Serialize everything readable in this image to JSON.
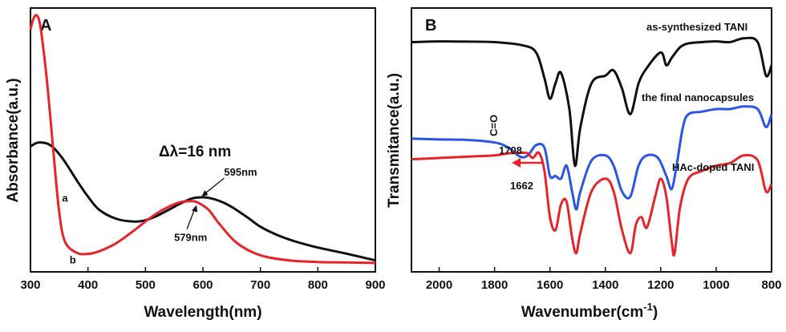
{
  "chart_data": [
    {
      "type": "line",
      "panel_label": "A",
      "xlabel": "Wavelength(nm)",
      "ylabel": "Absorbance(a.u.)",
      "xlim": [
        300,
        900
      ],
      "ylim": [
        0,
        1
      ],
      "xticks": [
        300,
        400,
        500,
        600,
        700,
        800,
        900
      ],
      "yticks_visible": false,
      "grid": false,
      "annotation_main": "Δλ=16 nm",
      "annotations": [
        {
          "id": "peak-a",
          "text": "595nm",
          "x": 595,
          "y": 0.277
        },
        {
          "id": "peak-b",
          "text": "579nm",
          "x": 575,
          "y": 0.21
        }
      ],
      "series": [
        {
          "name": "a",
          "label_x": 355,
          "label_y": 0.272,
          "color": "#111111",
          "x": [
            300,
            310,
            320,
            330,
            340,
            350,
            360,
            380,
            400,
            420,
            450,
            480,
            500,
            520,
            540,
            560,
            580,
            595,
            610,
            630,
            650,
            680,
            700,
            730,
            760,
            800,
            850,
            900
          ],
          "y": [
            0.475,
            0.488,
            0.49,
            0.485,
            0.47,
            0.445,
            0.415,
            0.345,
            0.28,
            0.228,
            0.193,
            0.183,
            0.188,
            0.205,
            0.228,
            0.252,
            0.272,
            0.277,
            0.275,
            0.262,
            0.24,
            0.195,
            0.163,
            0.13,
            0.106,
            0.082,
            0.058,
            0.032
          ]
        },
        {
          "name": "b",
          "label_x": 368,
          "label_y": 0.033,
          "color": "#e8242a",
          "x": [
            300,
            305,
            310,
            315,
            320,
            330,
            340,
            350,
            360,
            380,
            400,
            420,
            450,
            480,
            500,
            520,
            540,
            560,
            579,
            590,
            610,
            630,
            660,
            700,
            750,
            800,
            850,
            900
          ],
          "y": [
            0.93,
            0.97,
            0.985,
            0.965,
            0.9,
            0.7,
            0.45,
            0.22,
            0.105,
            0.062,
            0.057,
            0.068,
            0.1,
            0.148,
            0.183,
            0.215,
            0.24,
            0.258,
            0.262,
            0.258,
            0.228,
            0.17,
            0.098,
            0.052,
            0.032,
            0.026,
            0.024,
            0.022
          ]
        }
      ]
    },
    {
      "type": "line",
      "panel_label": "B",
      "xlabel": "Wavenumber(cm",
      "xlabel_sup": "-1",
      "xlabel_close": ")",
      "ylabel": "Transmitance(a.u.)",
      "xlim": [
        2100,
        800
      ],
      "ylim": [
        0,
        1
      ],
      "x_reversed": true,
      "xticks": [
        2000,
        1800,
        1600,
        1400,
        1200,
        1000,
        800
      ],
      "yticks_visible": false,
      "grid": false,
      "annotations": [
        {
          "id": "carbonyl",
          "text": "C=O",
          "rotated": true
        },
        {
          "id": "wn-1708",
          "text": "1708"
        },
        {
          "id": "wn-1662",
          "text": "1662"
        }
      ],
      "series": [
        {
          "name": "as-synthesized TANI",
          "color": "#111111",
          "x": [
            2100,
            2000,
            1900,
            1800,
            1700,
            1650,
            1620,
            1600,
            1580,
            1560,
            1530,
            1510,
            1490,
            1450,
            1400,
            1370,
            1340,
            1310,
            1280,
            1250,
            1200,
            1180,
            1160,
            1130,
            1100,
            1050,
            1000,
            950,
            900,
            850,
            820,
            800
          ],
          "y": [
            0.88,
            0.883,
            0.882,
            0.88,
            0.868,
            0.84,
            0.74,
            0.66,
            0.72,
            0.76,
            0.62,
            0.4,
            0.55,
            0.72,
            0.75,
            0.77,
            0.7,
            0.6,
            0.72,
            0.78,
            0.84,
            0.79,
            0.82,
            0.86,
            0.875,
            0.88,
            0.883,
            0.88,
            0.895,
            0.88,
            0.75,
            0.79
          ]
        },
        {
          "name": "the final nanocapsules",
          "color": "#2a55e6",
          "x": [
            2100,
            2000,
            1900,
            1800,
            1750,
            1708,
            1680,
            1650,
            1620,
            1600,
            1580,
            1560,
            1540,
            1520,
            1505,
            1490,
            1450,
            1400,
            1370,
            1340,
            1310,
            1280,
            1250,
            1210,
            1180,
            1160,
            1140,
            1120,
            1100,
            1050,
            1000,
            950,
            900,
            850,
            820,
            800
          ],
          "y": [
            0.505,
            0.502,
            0.5,
            0.49,
            0.47,
            0.435,
            0.44,
            0.48,
            0.47,
            0.36,
            0.36,
            0.35,
            0.4,
            0.3,
            0.23,
            0.3,
            0.42,
            0.44,
            0.4,
            0.3,
            0.28,
            0.4,
            0.44,
            0.43,
            0.36,
            0.31,
            0.42,
            0.55,
            0.6,
            0.61,
            0.62,
            0.62,
            0.63,
            0.62,
            0.55,
            0.6
          ]
        },
        {
          "name": "HAc-doped TANI",
          "color": "#e8242a",
          "x": [
            2100,
            2000,
            1900,
            1800,
            1750,
            1700,
            1680,
            1662,
            1640,
            1620,
            1600,
            1580,
            1560,
            1540,
            1520,
            1505,
            1490,
            1450,
            1400,
            1370,
            1340,
            1310,
            1290,
            1270,
            1250,
            1220,
            1200,
            1180,
            1160,
            1150,
            1130,
            1100,
            1050,
            1000,
            950,
            900,
            850,
            820,
            800
          ],
          "y": [
            0.425,
            0.43,
            0.435,
            0.44,
            0.448,
            0.45,
            0.448,
            0.43,
            0.45,
            0.38,
            0.2,
            0.15,
            0.25,
            0.26,
            0.12,
            0.06,
            0.14,
            0.3,
            0.35,
            0.3,
            0.15,
            0.06,
            0.17,
            0.2,
            0.16,
            0.28,
            0.35,
            0.28,
            0.1,
            0.06,
            0.24,
            0.35,
            0.38,
            0.4,
            0.41,
            0.44,
            0.42,
            0.3,
            0.33
          ]
        }
      ]
    }
  ]
}
